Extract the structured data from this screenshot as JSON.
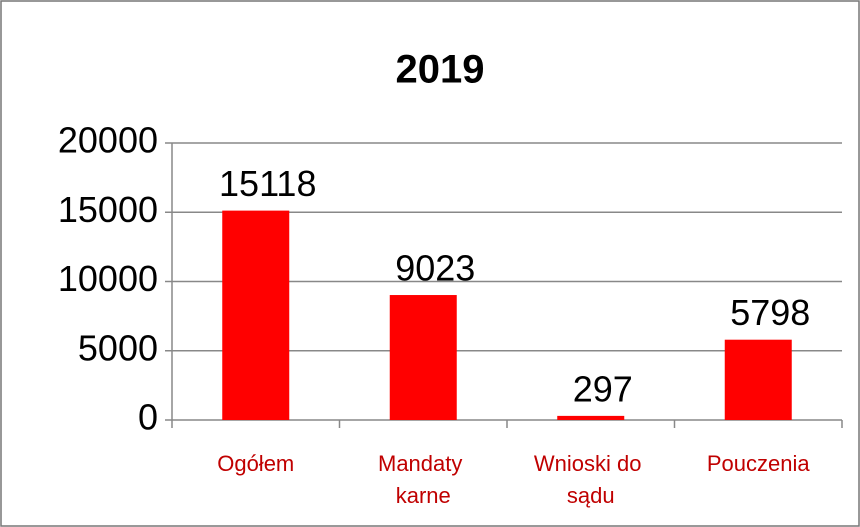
{
  "chart_data": {
    "type": "bar",
    "title": "2019",
    "categories": [
      "Ogółem",
      "Mandaty karne",
      "Wnioski do sądu",
      "Pouczenia"
    ],
    "values": [
      15118,
      9023,
      297,
      5798
    ],
    "color": "#ff0000",
    "ylim": [
      0,
      20000
    ],
    "yticks": [
      0,
      5000,
      10000,
      15000,
      20000
    ],
    "grid": true
  }
}
